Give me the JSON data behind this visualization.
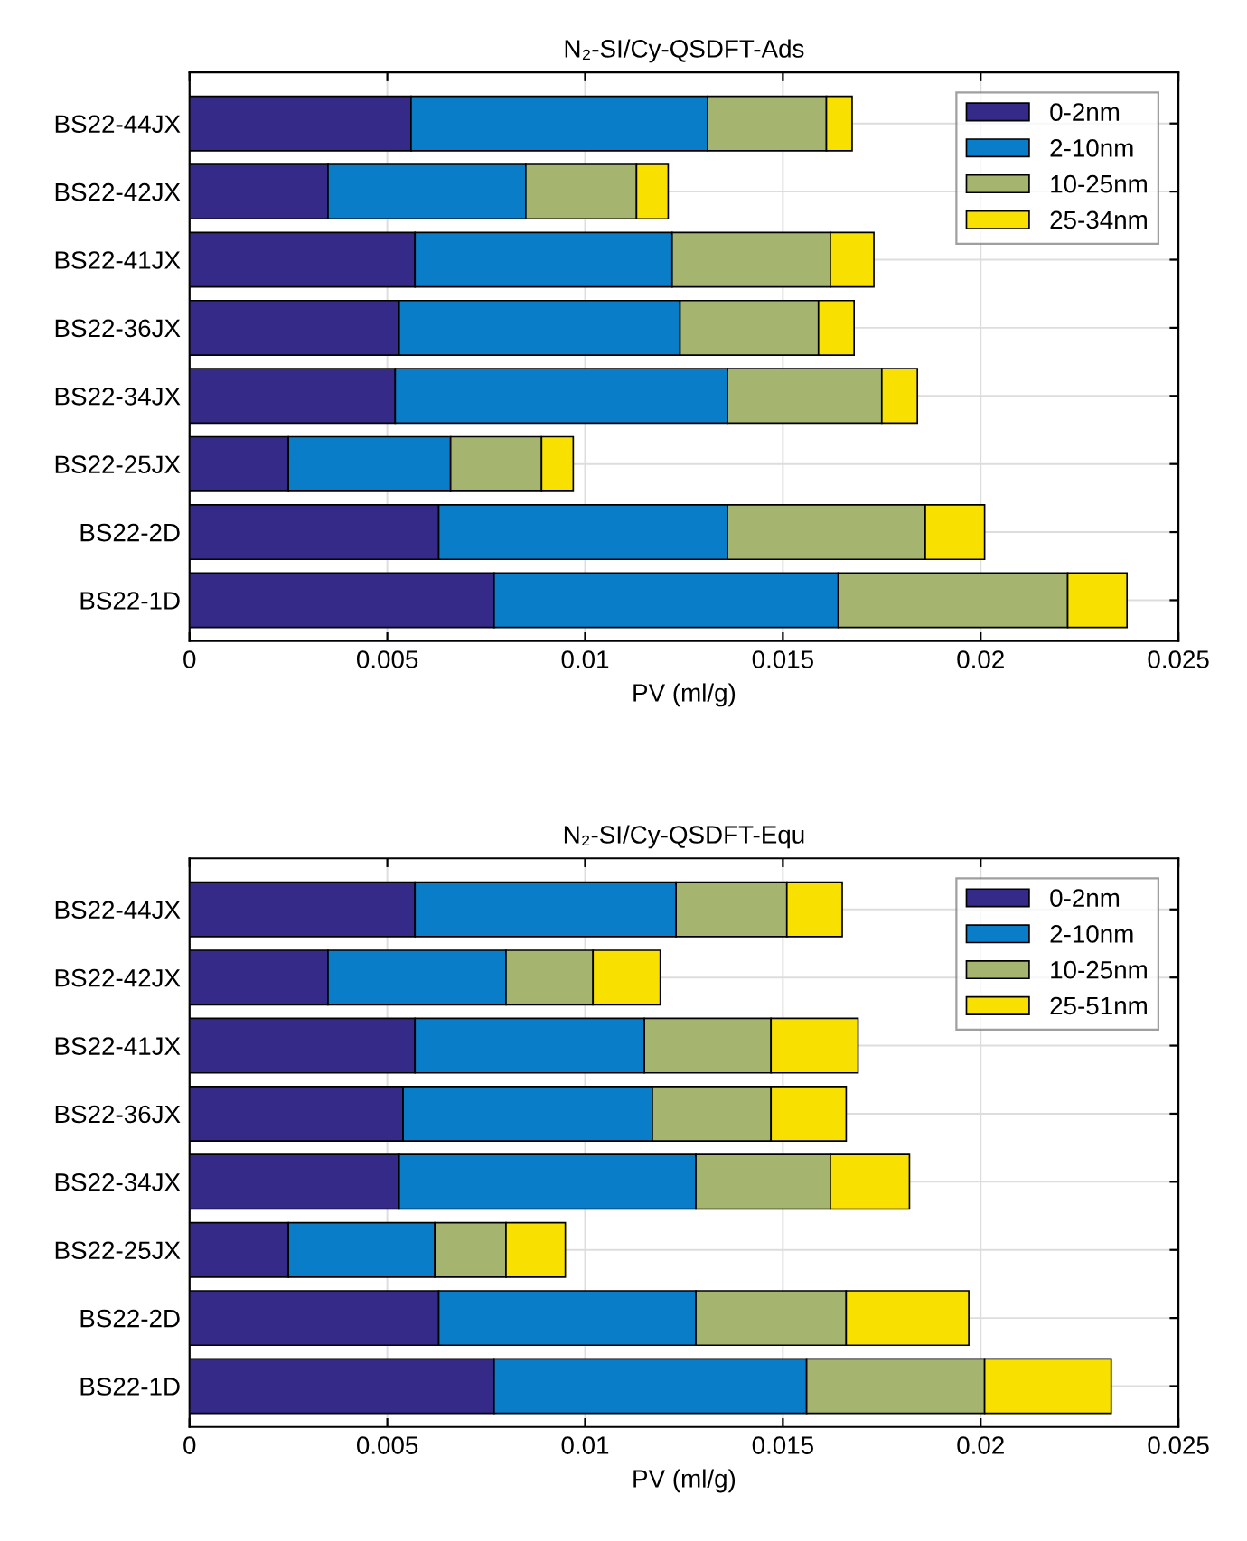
{
  "chart_data": [
    {
      "type": "bar",
      "orientation": "horizontal",
      "stacked": true,
      "title": "N₂-SI/Cy-QSDFT-Ads",
      "xlabel": "PV (ml/g)",
      "categories": [
        "BS22-44JX",
        "BS22-42JX",
        "BS22-41JX",
        "BS22-36JX",
        "BS22-34JX",
        "BS22-25JX",
        "BS22-2D",
        "BS22-1D"
      ],
      "series": [
        {
          "name": "0-2nm",
          "color": "#352a87",
          "values": [
            0.0056,
            0.0035,
            0.0057,
            0.0053,
            0.0052,
            0.0025,
            0.0063,
            0.0077
          ]
        },
        {
          "name": "2-10nm",
          "color": "#0a7dc8",
          "values": [
            0.0075,
            0.005,
            0.0065,
            0.0071,
            0.0084,
            0.0041,
            0.0073,
            0.0087
          ]
        },
        {
          "name": "10-25nm",
          "color": "#a5b46e",
          "values": [
            0.003,
            0.0028,
            0.004,
            0.0035,
            0.0039,
            0.0023,
            0.005,
            0.0058
          ]
        },
        {
          "name": "25-34nm",
          "color": "#f8e000",
          "values": [
            0.00065,
            0.0008,
            0.0011,
            0.0009,
            0.0009,
            0.0008,
            0.0015,
            0.0015
          ]
        }
      ],
      "xlim": [
        0,
        0.025
      ],
      "xticks": [
        0,
        0.005,
        0.01,
        0.015,
        0.02,
        0.025
      ],
      "grid": true,
      "legend": "top right"
    },
    {
      "type": "bar",
      "orientation": "horizontal",
      "stacked": true,
      "title": "N₂-SI/Cy-QSDFT-Equ",
      "xlabel": "PV (ml/g)",
      "categories": [
        "BS22-44JX",
        "BS22-42JX",
        "BS22-41JX",
        "BS22-36JX",
        "BS22-34JX",
        "BS22-25JX",
        "BS22-2D",
        "BS22-1D"
      ],
      "series": [
        {
          "name": "0-2nm",
          "color": "#352a87",
          "values": [
            0.0057,
            0.0035,
            0.0057,
            0.0054,
            0.0053,
            0.0025,
            0.0063,
            0.0077
          ]
        },
        {
          "name": "2-10nm",
          "color": "#0a7dc8",
          "values": [
            0.0066,
            0.0045,
            0.0058,
            0.0063,
            0.0075,
            0.0037,
            0.0065,
            0.0079
          ]
        },
        {
          "name": "10-25nm",
          "color": "#a5b46e",
          "values": [
            0.0028,
            0.0022,
            0.0032,
            0.003,
            0.0034,
            0.0018,
            0.0038,
            0.0045
          ]
        },
        {
          "name": "25-51nm",
          "color": "#f8e000",
          "values": [
            0.0014,
            0.0017,
            0.0022,
            0.0019,
            0.002,
            0.0015,
            0.0031,
            0.0032
          ]
        }
      ],
      "xlim": [
        0,
        0.025
      ],
      "xticks": [
        0,
        0.005,
        0.01,
        0.015,
        0.02,
        0.025
      ],
      "grid": true,
      "legend": "top right"
    }
  ]
}
